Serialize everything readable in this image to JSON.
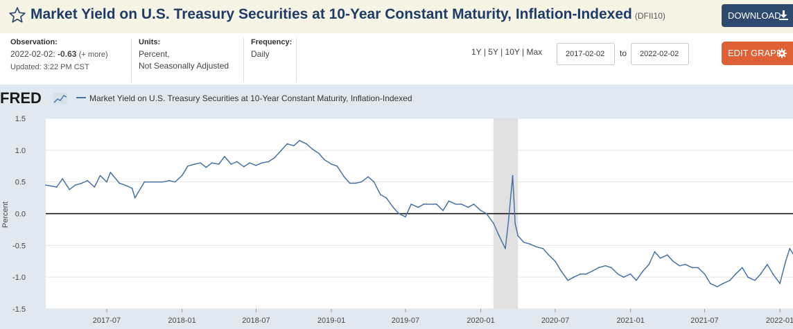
{
  "header": {
    "title": "Market Yield on U.S. Treasury Securities at 10-Year Constant Maturity, Inflation-Indexed",
    "series_id": "(DFII10)",
    "download_label": "DOWNLOAD",
    "icons": {
      "favorite": "star-icon",
      "download": "download-icon",
      "edit": "gear-icon"
    }
  },
  "observation": {
    "label": "Observation:",
    "date": "2022-02-02:",
    "value": "-0.63",
    "more": "(+ more)",
    "updated": "Updated: 3:22 PM CST"
  },
  "units": {
    "label": "Units:",
    "line1": "Percent,",
    "line2": "Not Seasonally Adjusted"
  },
  "frequency": {
    "label": "Frequency:",
    "value": "Daily"
  },
  "range": {
    "links": [
      "1Y",
      "5Y",
      "10Y",
      "Max"
    ],
    "sep": "|",
    "start": "2017-02-02",
    "to_label": "to",
    "end": "2022-02-02"
  },
  "edit_label": "EDIT GRAPH",
  "colors": {
    "line": "#4572a7",
    "recession": "#e1e1e1",
    "plot_bg": "#ffffff",
    "frame_bg": "#e1e9f0",
    "title": "#1f3b66",
    "download_bg": "#2e4a6e",
    "edit_bg": "#e06036"
  },
  "chart_data": {
    "type": "line",
    "logo": "FRED",
    "legend": "Market Yield on U.S. Treasury Securities at 10-Year Constant Maturity, Inflation-Indexed",
    "ylabel": "Percent",
    "ylim": [
      -1.5,
      1.5
    ],
    "yticks": [
      1.5,
      1.0,
      0.5,
      0.0,
      -0.5,
      -1.0,
      -1.5
    ],
    "ytick_labels": [
      "1.5",
      "1.0",
      "0.5",
      "0.0",
      "-0.5",
      "-1.0",
      "-1.5"
    ],
    "xlim": [
      "2017-02-02",
      "2022-02-02"
    ],
    "xticks": [
      "2017-07",
      "2018-01",
      "2018-07",
      "2019-01",
      "2019-07",
      "2020-01",
      "2020-07",
      "2021-01",
      "2021-07",
      "2022-01"
    ],
    "zero_line": 0,
    "recession": {
      "start": "2020-02",
      "end": "2020-04"
    },
    "grid": "horizontal",
    "series": [
      {
        "name": "DFII10",
        "x": [
          "2017-02-02",
          "2017-03-01",
          "2017-03-15",
          "2017-04-01",
          "2017-04-15",
          "2017-05-01",
          "2017-05-15",
          "2017-06-01",
          "2017-06-15",
          "2017-07-01",
          "2017-07-10",
          "2017-08-01",
          "2017-08-15",
          "2017-09-01",
          "2017-09-08",
          "2017-10-01",
          "2017-10-15",
          "2017-11-01",
          "2017-11-15",
          "2017-12-01",
          "2017-12-15",
          "2018-01-01",
          "2018-01-15",
          "2018-02-01",
          "2018-02-15",
          "2018-03-01",
          "2018-03-15",
          "2018-04-01",
          "2018-04-15",
          "2018-05-01",
          "2018-05-15",
          "2018-06-01",
          "2018-06-15",
          "2018-07-01",
          "2018-07-15",
          "2018-08-01",
          "2018-08-15",
          "2018-09-01",
          "2018-09-15",
          "2018-10-01",
          "2018-10-15",
          "2018-11-01",
          "2018-11-15",
          "2018-12-01",
          "2018-12-15",
          "2019-01-01",
          "2019-01-15",
          "2019-02-01",
          "2019-02-15",
          "2019-03-01",
          "2019-03-15",
          "2019-04-01",
          "2019-04-15",
          "2019-05-01",
          "2019-05-15",
          "2019-06-01",
          "2019-06-15",
          "2019-07-01",
          "2019-07-15",
          "2019-08-01",
          "2019-08-15",
          "2019-09-01",
          "2019-09-15",
          "2019-10-01",
          "2019-10-15",
          "2019-11-01",
          "2019-11-15",
          "2019-12-01",
          "2019-12-15",
          "2020-01-01",
          "2020-01-15",
          "2020-02-01",
          "2020-02-15",
          "2020-03-01",
          "2020-03-09",
          "2020-03-19",
          "2020-03-25",
          "2020-04-01",
          "2020-04-15",
          "2020-05-01",
          "2020-05-15",
          "2020-06-01",
          "2020-06-15",
          "2020-07-01",
          "2020-07-15",
          "2020-08-01",
          "2020-08-15",
          "2020-09-01",
          "2020-09-15",
          "2020-10-01",
          "2020-10-15",
          "2020-11-01",
          "2020-11-15",
          "2020-12-01",
          "2020-12-15",
          "2021-01-01",
          "2021-01-15",
          "2021-02-01",
          "2021-02-15",
          "2021-03-01",
          "2021-03-15",
          "2021-04-01",
          "2021-04-15",
          "2021-05-01",
          "2021-05-15",
          "2021-06-01",
          "2021-06-15",
          "2021-07-01",
          "2021-07-15",
          "2021-08-01",
          "2021-08-15",
          "2021-09-01",
          "2021-09-15",
          "2021-10-01",
          "2021-10-15",
          "2021-11-01",
          "2021-11-15",
          "2021-12-01",
          "2021-12-15",
          "2022-01-01",
          "2022-01-15",
          "2022-01-25",
          "2022-02-02"
        ],
        "y": [
          0.45,
          0.42,
          0.55,
          0.38,
          0.45,
          0.48,
          0.52,
          0.42,
          0.6,
          0.5,
          0.65,
          0.48,
          0.45,
          0.4,
          0.25,
          0.5,
          0.5,
          0.5,
          0.5,
          0.52,
          0.5,
          0.6,
          0.75,
          0.78,
          0.8,
          0.73,
          0.8,
          0.78,
          0.9,
          0.78,
          0.82,
          0.74,
          0.8,
          0.76,
          0.8,
          0.82,
          0.88,
          1.0,
          1.1,
          1.07,
          1.15,
          1.1,
          1.02,
          0.95,
          0.85,
          0.78,
          0.75,
          0.58,
          0.48,
          0.48,
          0.5,
          0.58,
          0.5,
          0.3,
          0.25,
          0.1,
          0.0,
          -0.05,
          0.15,
          0.1,
          0.15,
          0.15,
          0.15,
          0.05,
          0.2,
          0.15,
          0.15,
          0.1,
          0.15,
          0.05,
          0.0,
          -0.15,
          -0.35,
          -0.55,
          -0.1,
          0.6,
          -0.15,
          -0.35,
          -0.45,
          -0.48,
          -0.52,
          -0.55,
          -0.65,
          -0.75,
          -0.9,
          -1.05,
          -1.0,
          -0.95,
          -0.95,
          -0.9,
          -0.85,
          -0.82,
          -0.85,
          -0.95,
          -1.0,
          -0.95,
          -1.05,
          -0.9,
          -0.8,
          -0.6,
          -0.7,
          -0.65,
          -0.75,
          -0.82,
          -0.8,
          -0.85,
          -0.85,
          -0.95,
          -1.1,
          -1.15,
          -1.1,
          -1.05,
          -0.95,
          -0.85,
          -1.0,
          -1.05,
          -0.95,
          -0.8,
          -0.95,
          -1.1,
          -0.75,
          -0.55,
          -0.63
        ]
      }
    ]
  }
}
